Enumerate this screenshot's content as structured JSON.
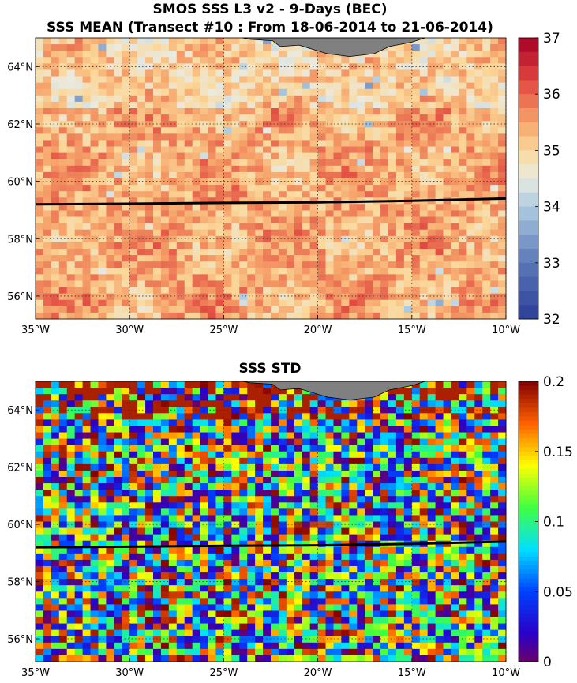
{
  "figure": {
    "title_line1": "SMOS SSS L3 v2 - 9-Days (BEC)",
    "title_line2": "SSS MEAN (Transect #10 : From 18-06-2014 to 21-06-2014)"
  },
  "panels": [
    {
      "id": "mean",
      "title": "",
      "colormap": "blue-white-red",
      "colorbar": {
        "min": 32,
        "max": 37,
        "ticks": [
          "32",
          "33",
          "34",
          "35",
          "36",
          "37"
        ]
      }
    },
    {
      "id": "std",
      "title": "SSS STD",
      "colormap": "jet",
      "colorbar": {
        "min": 0,
        "max": 0.2,
        "ticks": [
          "0",
          "0.05",
          "0.1",
          "0.15",
          "0.2"
        ]
      }
    }
  ],
  "map": {
    "lon_range": [
      -35,
      -10
    ],
    "lat_range": [
      55.2,
      65
    ],
    "lon_ticks": [
      -35,
      -30,
      -25,
      -20,
      -15,
      -10
    ],
    "lon_tick_labels": [
      "35°W",
      "30°W",
      "25°W",
      "20°W",
      "15°W",
      "10°W"
    ],
    "lat_ticks": [
      56,
      58,
      60,
      62,
      64
    ],
    "lat_tick_labels": [
      "56°N",
      "58°N",
      "60°N",
      "62°N",
      "64°N"
    ],
    "grid": "dotted",
    "land_color": "#808080",
    "land_name": "Iceland (south coast)",
    "transect": {
      "lon": [
        -35,
        -30,
        -25,
        -20,
        -15,
        -10
      ],
      "lat": [
        59.2,
        59.22,
        59.25,
        59.27,
        59.32,
        59.4
      ]
    }
  }
}
